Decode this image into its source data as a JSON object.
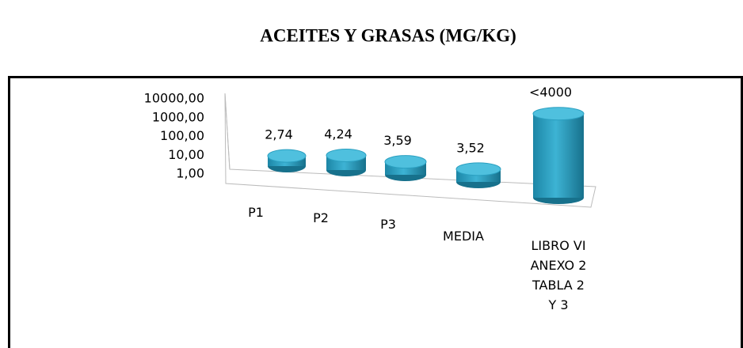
{
  "chart_data": {
    "type": "bar3d",
    "title": "ACEITES Y GRASAS (MG/KG)",
    "categories": [
      "P1",
      "P2",
      "P3",
      "MEDIA",
      "LIBRO VI\nANEXO 2\nTABLA 2\nY 3"
    ],
    "values": [
      2.74,
      4.24,
      3.59,
      3.52,
      4000
    ],
    "value_labels": [
      "2,74",
      "4,24",
      "3,59",
      "3,52",
      "<4000"
    ],
    "color": "#2a9fc0",
    "log_scale": true,
    "ylim": [
      1,
      10000
    ],
    "yticks": [
      {
        "value": 1,
        "label": "1,00"
      },
      {
        "value": 10,
        "label": "10,00"
      },
      {
        "value": 100,
        "label": "100,00"
      },
      {
        "value": 1000,
        "label": "1000,00"
      },
      {
        "value": 10000,
        "label": "10000,00"
      }
    ]
  }
}
